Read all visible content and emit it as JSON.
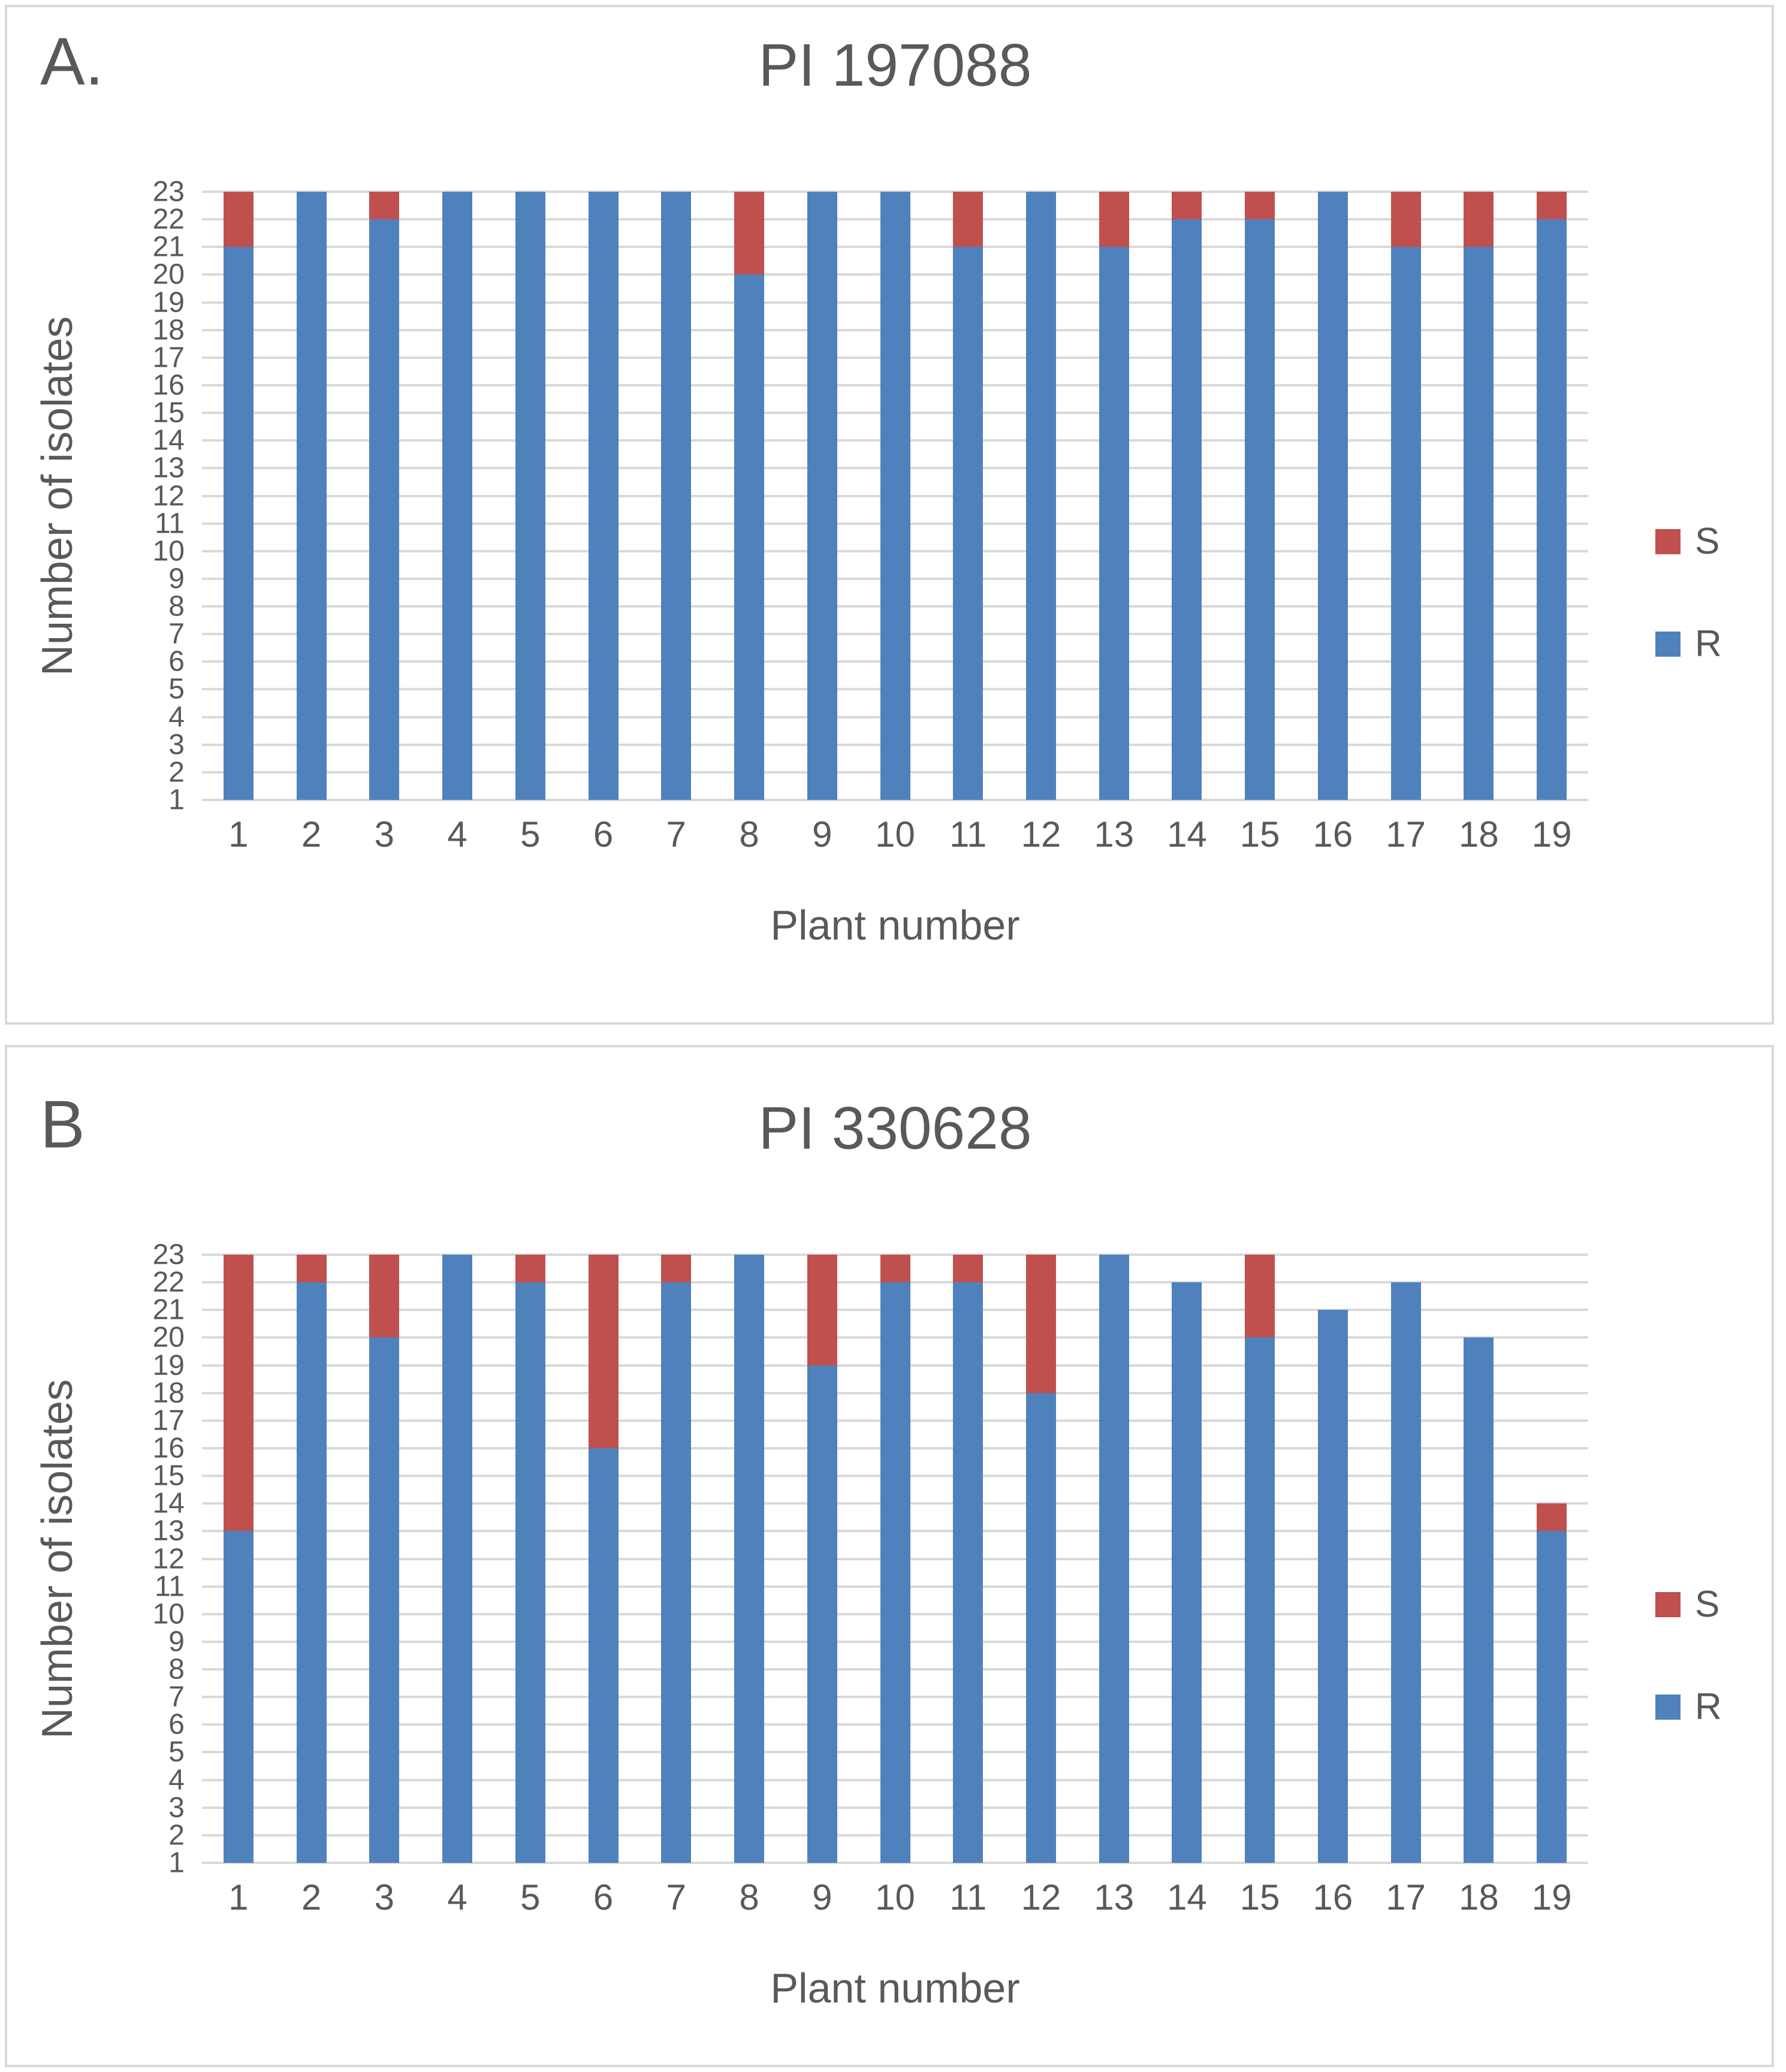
{
  "colors": {
    "r_blue": "#4f81bd",
    "s_red": "#c0504d",
    "text_gray": "#595959",
    "gridline_gray": "#d9d9d9",
    "panel_border_gray": "#d9d9d9",
    "background": "#ffffff"
  },
  "chart_data": [
    {
      "type": "bar",
      "stacked": true,
      "panel_label": "A.",
      "title": "PI 197088",
      "xlabel": "Plant number",
      "ylabel": "Number of isolates",
      "ylim": [
        1,
        23
      ],
      "ytick_step": 1,
      "grid": true,
      "legend_position": "right",
      "categories": [
        "1",
        "2",
        "3",
        "4",
        "5",
        "6",
        "7",
        "8",
        "9",
        "10",
        "11",
        "12",
        "13",
        "14",
        "15",
        "16",
        "17",
        "18",
        "19"
      ],
      "series": [
        {
          "name": "R",
          "color": "#4f81bd",
          "values": [
            21,
            23,
            22,
            23,
            23,
            23,
            23,
            20,
            23,
            23,
            21,
            23,
            21,
            22,
            22,
            23,
            21,
            21,
            22
          ]
        },
        {
          "name": "S",
          "color": "#c0504d",
          "values": [
            2,
            0,
            1,
            0,
            0,
            0,
            0,
            3,
            0,
            0,
            2,
            0,
            2,
            1,
            1,
            0,
            2,
            2,
            1
          ]
        }
      ],
      "legend_order": [
        "S",
        "R"
      ]
    },
    {
      "type": "bar",
      "stacked": true,
      "panel_label": "B",
      "title": "PI 330628",
      "xlabel": "Plant number",
      "ylabel": "Number of isolates",
      "ylim": [
        1,
        23
      ],
      "ytick_step": 1,
      "grid": true,
      "legend_position": "right",
      "categories": [
        "1",
        "2",
        "3",
        "4",
        "5",
        "6",
        "7",
        "8",
        "9",
        "10",
        "11",
        "12",
        "13",
        "14",
        "15",
        "16",
        "17",
        "18",
        "19"
      ],
      "series": [
        {
          "name": "R",
          "color": "#4f81bd",
          "values": [
            13,
            22,
            20,
            23,
            22,
            16,
            22,
            23,
            19,
            22,
            22,
            18,
            23,
            22,
            20,
            21,
            22,
            20,
            13
          ]
        },
        {
          "name": "S",
          "color": "#c0504d",
          "values": [
            10,
            1,
            3,
            0,
            1,
            7,
            1,
            0,
            4,
            1,
            1,
            5,
            0,
            0,
            3,
            0,
            0,
            0,
            1
          ]
        }
      ],
      "legend_order": [
        "S",
        "R"
      ]
    }
  ]
}
